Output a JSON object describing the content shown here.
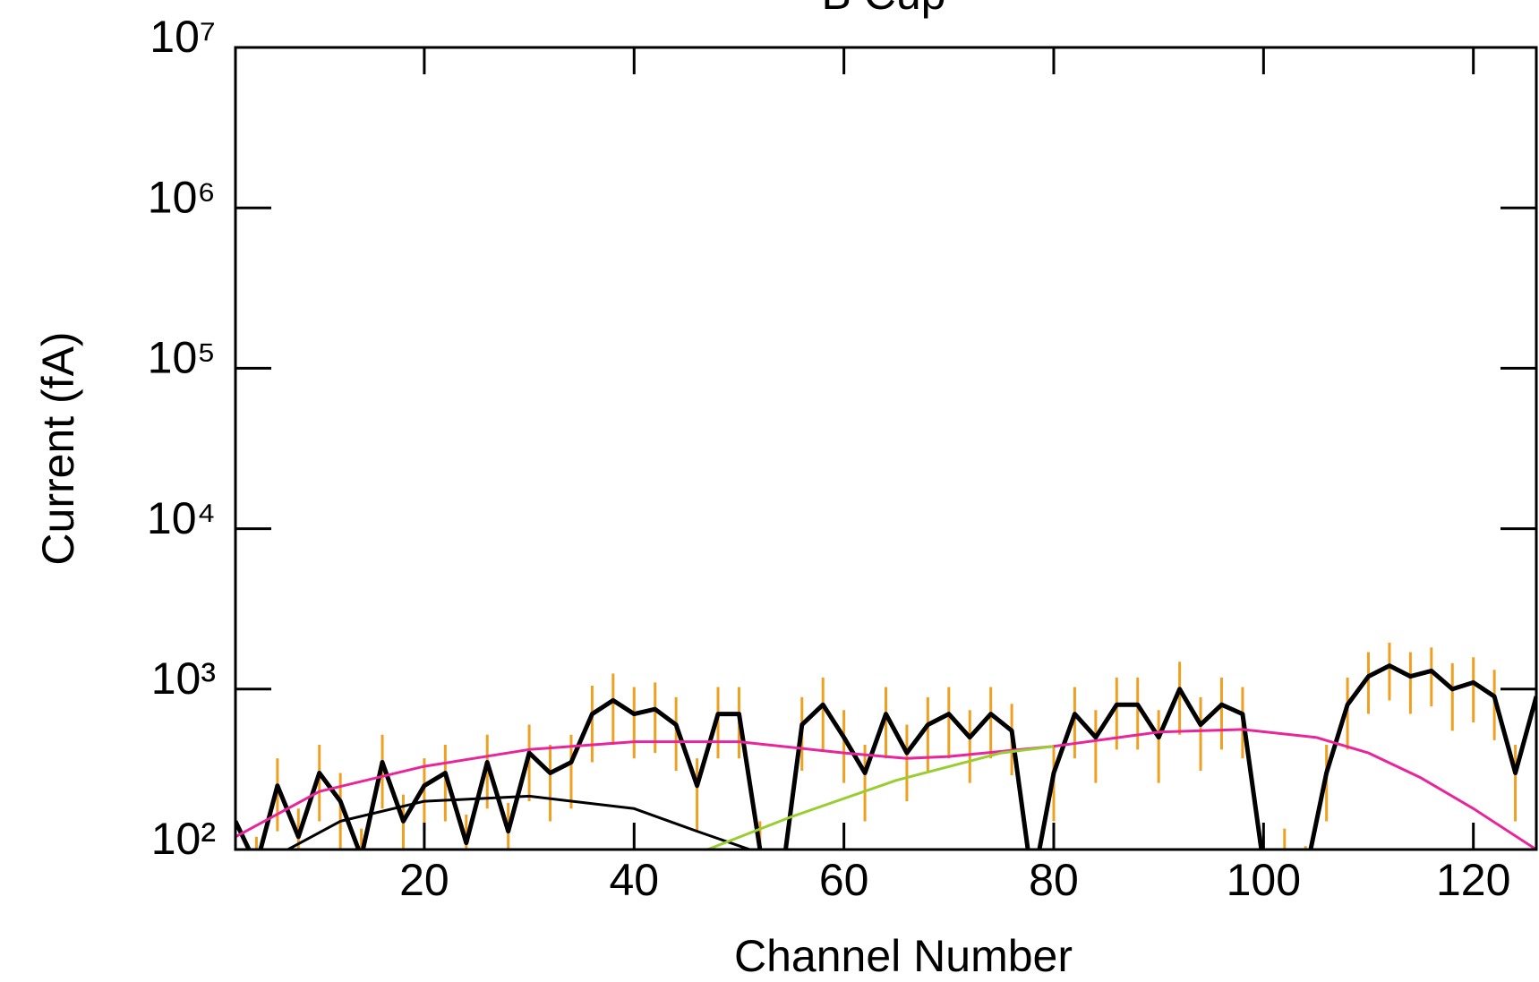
{
  "chart_data": {
    "type": "line",
    "title": "B Cup",
    "x_label": "Channel Number",
    "y_label": "Current (fA)",
    "xlim": [
      2,
      126
    ],
    "xticks": [
      20,
      40,
      60,
      80,
      100,
      120
    ],
    "ylim": [
      100,
      10000000
    ],
    "log_y": true,
    "yticks": [
      {
        "value": 100,
        "label": "10²"
      },
      {
        "value": 1000,
        "label": "10³"
      },
      {
        "value": 10000,
        "label": "10⁴"
      },
      {
        "value": 100000,
        "label": "10⁵"
      },
      {
        "value": 1000000,
        "label": "10⁶"
      },
      {
        "value": 10000000,
        "label": "10⁷"
      }
    ],
    "series": [
      {
        "color": "#000000",
        "error_color": "#f0a020",
        "x": [
          2,
          4,
          6,
          8,
          10,
          12,
          14,
          16,
          18,
          20,
          22,
          24,
          26,
          28,
          30,
          32,
          34,
          36,
          38,
          40,
          42,
          44,
          46,
          48,
          50,
          52,
          54,
          56,
          58,
          60,
          62,
          64,
          66,
          68,
          70,
          72,
          74,
          76,
          78,
          80,
          82,
          84,
          86,
          88,
          90,
          92,
          94,
          96,
          98,
          100,
          102,
          104,
          106,
          108,
          110,
          112,
          114,
          116,
          118,
          120,
          122,
          124,
          126
        ],
        "values": [
          150,
          80,
          250,
          120,
          300,
          200,
          90,
          350,
          150,
          250,
          300,
          110,
          350,
          130,
          400,
          300,
          350,
          700,
          850,
          700,
          750,
          600,
          250,
          700,
          700,
          100,
          60,
          600,
          800,
          500,
          300,
          700,
          400,
          600,
          700,
          500,
          700,
          550,
          60,
          300,
          700,
          500,
          800,
          800,
          500,
          1000,
          600,
          800,
          700,
          80,
          90,
          70,
          300,
          800,
          1200,
          1400,
          1200,
          1300,
          1000,
          1100,
          900,
          300,
          900
        ],
        "errors": [
          70,
          40,
          120,
          60,
          150,
          100,
          45,
          170,
          70,
          120,
          150,
          55,
          170,
          65,
          200,
          150,
          170,
          350,
          400,
          330,
          350,
          290,
          120,
          330,
          330,
          50,
          30,
          290,
          380,
          240,
          150,
          330,
          200,
          290,
          330,
          240,
          330,
          260,
          30,
          150,
          330,
          240,
          380,
          380,
          240,
          480,
          290,
          380,
          330,
          40,
          45,
          35,
          150,
          380,
          500,
          550,
          500,
          520,
          450,
          480,
          420,
          150,
          420
        ]
      },
      {
        "color": "#e8259a",
        "x": [
          2,
          10,
          20,
          30,
          40,
          50,
          60,
          66,
          70,
          80,
          90,
          98,
          105,
          110,
          115,
          120,
          126
        ],
        "values": [
          120,
          230,
          330,
          420,
          470,
          470,
          400,
          370,
          380,
          440,
          540,
          560,
          500,
          400,
          280,
          180,
          100
        ]
      },
      {
        "color": "#000000",
        "x": [
          7,
          12,
          20,
          30,
          40,
          46,
          52
        ],
        "values": [
          100,
          150,
          200,
          215,
          180,
          130,
          95
        ]
      },
      {
        "color": "#9acd32",
        "x": [
          47,
          55,
          65,
          75,
          80
        ],
        "values": [
          100,
          160,
          270,
          400,
          440
        ]
      }
    ]
  }
}
